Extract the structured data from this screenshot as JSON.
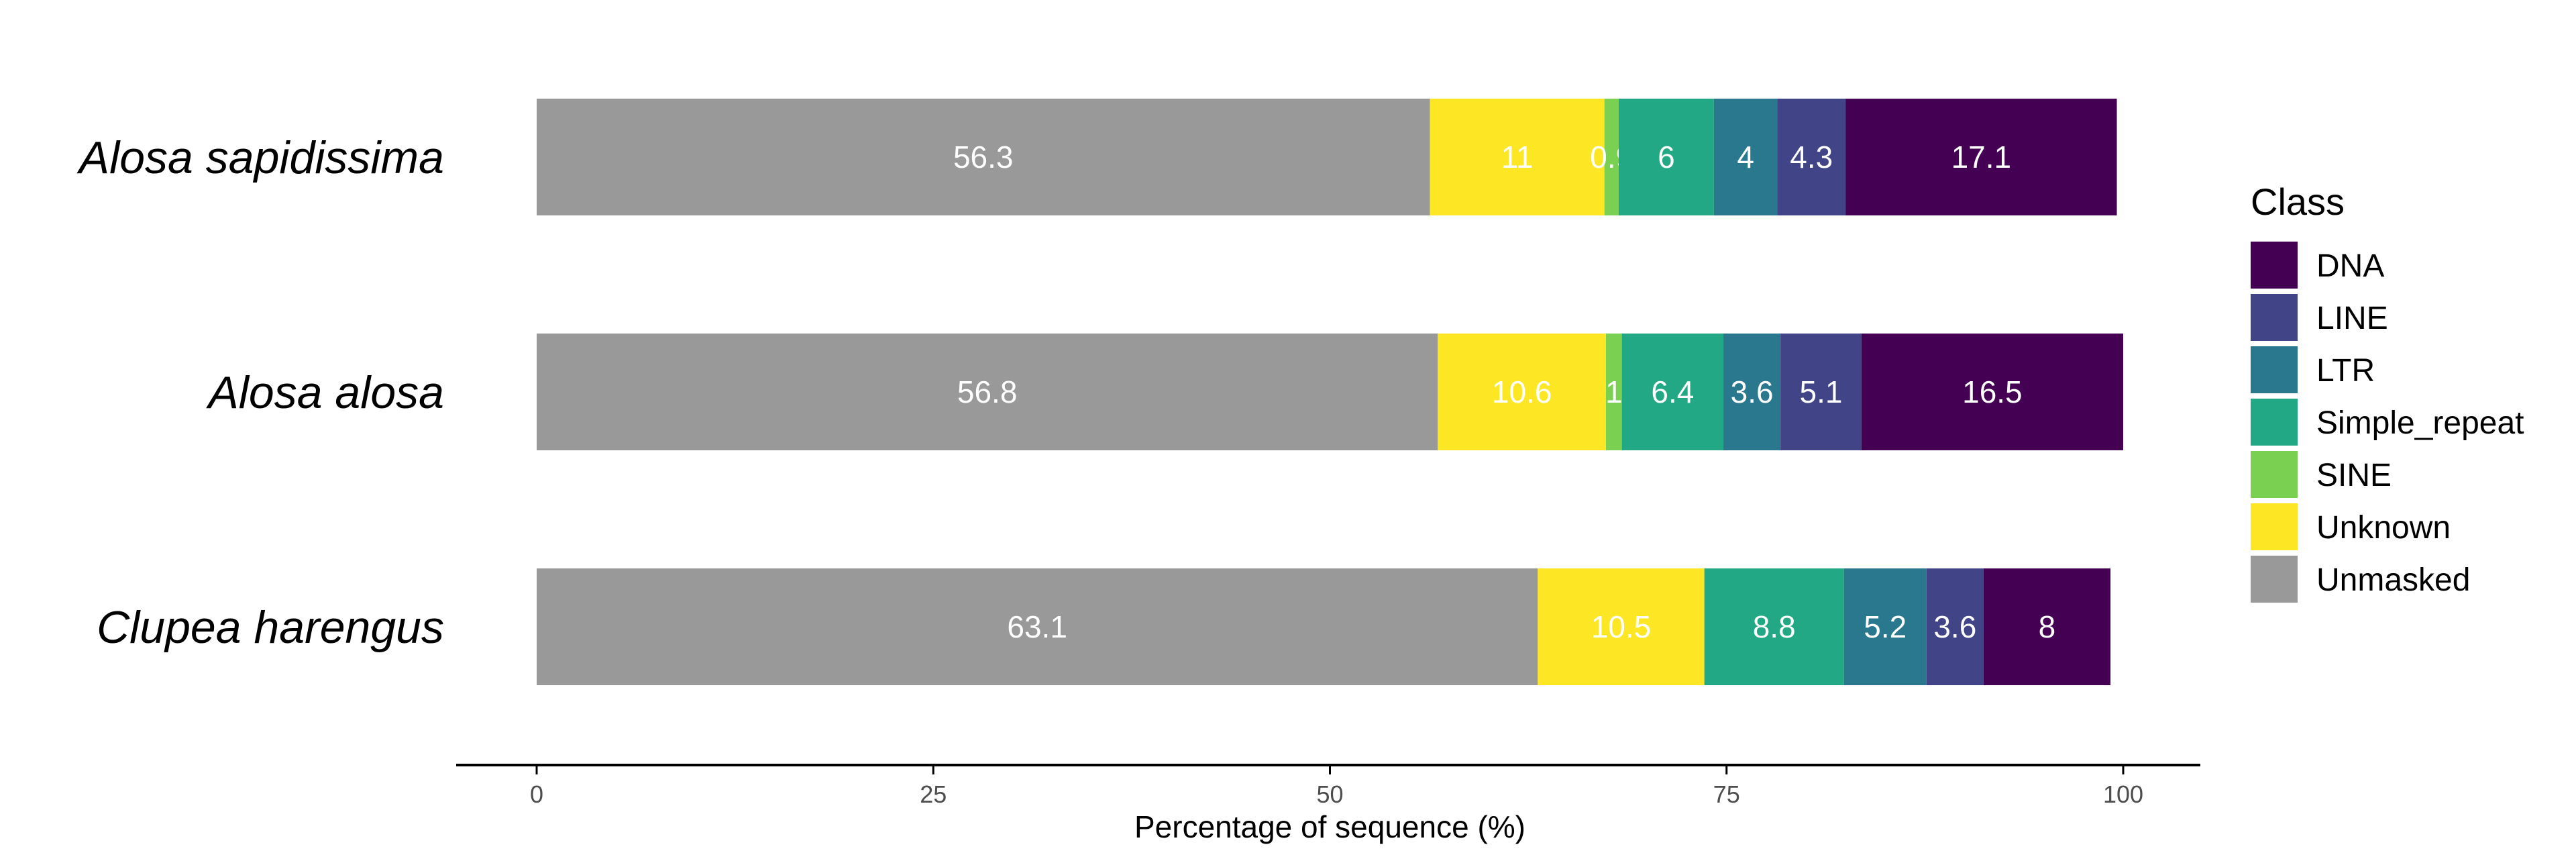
{
  "chart_data": {
    "type": "bar",
    "orientation": "horizontal",
    "stacked": true,
    "title": "",
    "xlabel": "Percentage of sequence (%)",
    "ylabel": "",
    "xlim": [
      0,
      100
    ],
    "x_ticks": [
      "0",
      "25",
      "50",
      "75",
      "100"
    ],
    "categories": [
      "Alosa sapidissima",
      "Alosa alosa",
      "Clupea harengus"
    ],
    "stack_order": [
      "Unmasked",
      "Unknown",
      "SINE",
      "Simple_repeat",
      "LTR",
      "LINE",
      "DNA"
    ],
    "series": [
      {
        "name": "Unmasked",
        "color": "#999999",
        "values": [
          56.3,
          56.8,
          63.1
        ],
        "labels": [
          "56.3",
          "56.8",
          "63.1"
        ]
      },
      {
        "name": "Unknown",
        "color": "#FDE725",
        "values": [
          11,
          10.6,
          10.5
        ],
        "labels": [
          "11",
          "10.6",
          "10.5"
        ]
      },
      {
        "name": "SINE",
        "color": "#7AD151",
        "values": [
          0.9,
          1,
          0
        ],
        "labels": [
          "0.9",
          "1",
          ""
        ]
      },
      {
        "name": "Simple_repeat",
        "color": "#22A884",
        "values": [
          6,
          6.4,
          8.8
        ],
        "labels": [
          "6",
          "6.4",
          "8.8"
        ]
      },
      {
        "name": "LTR",
        "color": "#2A788E",
        "values": [
          4,
          3.6,
          5.2
        ],
        "labels": [
          "4",
          "3.6",
          "5.2"
        ]
      },
      {
        "name": "LINE",
        "color": "#414487",
        "values": [
          4.3,
          5.1,
          3.6
        ],
        "labels": [
          "4.3",
          "5.1",
          "3.6"
        ]
      },
      {
        "name": "DNA",
        "color": "#440154",
        "values": [
          17.1,
          16.5,
          8
        ],
        "labels": [
          "17.1",
          "16.5",
          "8"
        ]
      }
    ],
    "legend": {
      "title": "Class",
      "placement": "right",
      "entries": [
        "DNA",
        "LINE",
        "LTR",
        "Simple_repeat",
        "SINE",
        "Unknown",
        "Unmasked"
      ]
    },
    "grid": false
  }
}
